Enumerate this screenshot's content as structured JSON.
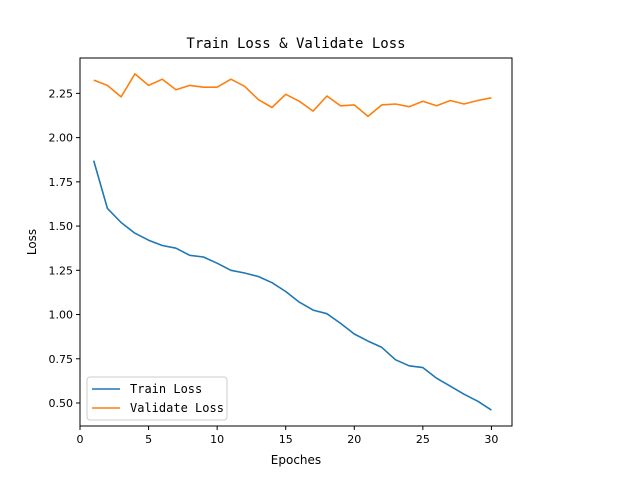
{
  "chart_data": {
    "type": "line",
    "title": "Train Loss & Validate Loss",
    "xlabel": "Epoches",
    "ylabel": "Loss",
    "xlim": [
      0,
      31.5
    ],
    "ylim": [
      0.37,
      2.45
    ],
    "xticks": [
      0,
      5,
      10,
      15,
      20,
      25,
      30
    ],
    "yticks": [
      0.5,
      0.75,
      1.0,
      1.25,
      1.5,
      1.75,
      2.0,
      2.25
    ],
    "ytick_labels": [
      "0.50",
      "0.75",
      "1.00",
      "1.25",
      "1.50",
      "1.75",
      "2.00",
      "2.25"
    ],
    "xtick_labels": [
      "0",
      "5",
      "10",
      "15",
      "20",
      "25",
      "30"
    ],
    "grid": false,
    "legend_position": "lower-left",
    "x": [
      1,
      2,
      3,
      4,
      5,
      6,
      7,
      8,
      9,
      10,
      11,
      12,
      13,
      14,
      15,
      16,
      17,
      18,
      19,
      20,
      21,
      22,
      23,
      24,
      25,
      26,
      27,
      28,
      29,
      30
    ],
    "series": [
      {
        "name": "Train Loss",
        "color": "#1f77b4",
        "values": [
          1.87,
          1.6,
          1.52,
          1.46,
          1.42,
          1.39,
          1.375,
          1.335,
          1.325,
          1.29,
          1.25,
          1.235,
          1.215,
          1.18,
          1.13,
          1.07,
          1.025,
          1.005,
          0.95,
          0.89,
          0.85,
          0.815,
          0.745,
          0.71,
          0.7,
          0.64,
          0.595,
          0.55,
          0.51,
          0.46
        ]
      },
      {
        "name": "Validate Loss",
        "color": "#ff7f0e",
        "values": [
          2.325,
          2.295,
          2.23,
          2.36,
          2.295,
          2.33,
          2.27,
          2.295,
          2.285,
          2.285,
          2.33,
          2.29,
          2.215,
          2.17,
          2.245,
          2.205,
          2.15,
          2.235,
          2.18,
          2.185,
          2.12,
          2.185,
          2.19,
          2.175,
          2.205,
          2.18,
          2.21,
          2.19,
          2.21,
          2.225
        ]
      }
    ]
  }
}
